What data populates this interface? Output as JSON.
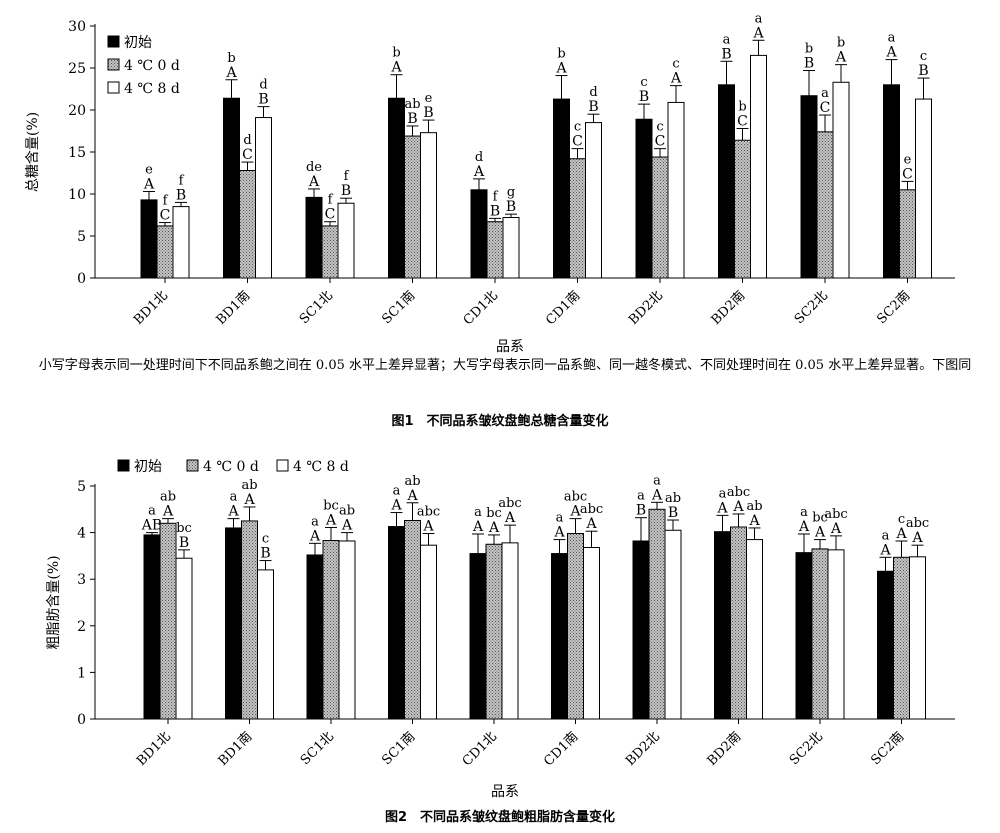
{
  "chart_data": [
    {
      "type": "bar",
      "ylabel": "总糖含量(%)",
      "xlabel": "品系",
      "ylim": [
        0,
        30
      ],
      "yticks": [
        0,
        5,
        10,
        15,
        20,
        25,
        30
      ],
      "legend_position": "top-left",
      "categories": [
        "BD1北",
        "BD1南",
        "SC1北",
        "SC1南",
        "CD1北",
        "CD1南",
        "BD2北",
        "BD2南",
        "SC2北",
        "SC2南"
      ],
      "series": [
        {
          "name": "初始",
          "fill": "black",
          "values": [
            9.3,
            21.4,
            9.6,
            21.4,
            10.5,
            21.3,
            18.9,
            23.0,
            21.7,
            23.0
          ],
          "errors": [
            1.0,
            2.2,
            1.0,
            2.8,
            1.3,
            2.8,
            1.8,
            2.8,
            3.0,
            3.0
          ],
          "lower_letters": [
            "e",
            "b",
            "de",
            "b",
            "d",
            "b",
            "c",
            "a",
            "b",
            "a"
          ],
          "upper_letters": [
            "A",
            "A",
            "A",
            "A",
            "A",
            "A",
            "B",
            "B",
            "B",
            "A"
          ]
        },
        {
          "name": "4 ℃ 0 d",
          "fill": "gray",
          "values": [
            6.2,
            12.8,
            6.2,
            16.9,
            6.7,
            14.2,
            14.4,
            16.4,
            17.4,
            10.5
          ],
          "errors": [
            0.4,
            1.0,
            0.5,
            1.2,
            0.4,
            1.2,
            1.0,
            1.4,
            2.0,
            1.0
          ],
          "lower_letters": [
            "f",
            "d",
            "f",
            "ab",
            "f",
            "c",
            "c",
            "b",
            "a",
            "e"
          ],
          "upper_letters": [
            "C",
            "C",
            "C",
            "B",
            "B",
            "C",
            "C",
            "C",
            "C",
            "C"
          ]
        },
        {
          "name": "4 ℃ 8 d",
          "fill": "white",
          "values": [
            8.5,
            19.1,
            8.9,
            17.3,
            7.2,
            18.5,
            20.9,
            26.5,
            23.3,
            21.3
          ],
          "errors": [
            0.5,
            1.3,
            0.6,
            1.5,
            0.4,
            1.0,
            2.0,
            1.8,
            2.1,
            2.5
          ],
          "lower_letters": [
            "f",
            "d",
            "f",
            "e",
            "g",
            "d",
            "c",
            "a",
            "b",
            "c"
          ],
          "upper_letters": [
            "B",
            "B",
            "B",
            "B",
            "B",
            "B",
            "A",
            "A",
            "A",
            "B"
          ]
        }
      ]
    },
    {
      "type": "bar",
      "ylabel": "粗脂肪含量(%)",
      "xlabel": "品系",
      "ylim": [
        0,
        5
      ],
      "yticks": [
        0,
        1,
        2,
        3,
        4,
        5
      ],
      "legend_position": "top",
      "categories": [
        "BD1北",
        "BD1南",
        "SC1北",
        "SC1南",
        "CD1北",
        "CD1南",
        "BD2北",
        "BD2南",
        "SC2北",
        "SC2南"
      ],
      "series": [
        {
          "name": "初始",
          "fill": "black",
          "values": [
            3.95,
            4.1,
            3.52,
            4.13,
            3.55,
            3.55,
            3.82,
            4.02,
            3.57,
            3.17
          ],
          "errors": [
            0.05,
            0.2,
            0.25,
            0.3,
            0.42,
            0.3,
            0.5,
            0.35,
            0.4,
            0.3
          ],
          "lower_letters": [
            "a",
            "a",
            "a",
            "a",
            "a",
            "a",
            "a",
            "a",
            "a",
            "a"
          ],
          "upper_letters": [
            "AB",
            "A",
            "A",
            "A",
            "A",
            "A",
            "B",
            "A",
            "A",
            "A"
          ]
        },
        {
          "name": "4 ℃ 0 d",
          "fill": "gray",
          "values": [
            4.2,
            4.25,
            3.83,
            4.26,
            3.75,
            3.98,
            4.5,
            4.12,
            3.65,
            3.47
          ],
          "errors": [
            0.1,
            0.3,
            0.28,
            0.38,
            0.2,
            0.32,
            0.15,
            0.28,
            0.2,
            0.35
          ],
          "lower_letters": [
            "ab",
            "ab",
            "bc",
            "ab",
            "bc",
            "abc",
            "a",
            "abc",
            "bc",
            "c"
          ],
          "upper_letters": [
            "A",
            "A",
            "A",
            "A",
            "A",
            "A",
            "A",
            "A",
            "A",
            "A"
          ]
        },
        {
          "name": "4 ℃ 8 d",
          "fill": "white",
          "values": [
            3.45,
            3.2,
            3.82,
            3.73,
            3.78,
            3.68,
            4.05,
            3.85,
            3.63,
            3.48
          ],
          "errors": [
            0.18,
            0.2,
            0.18,
            0.25,
            0.38,
            0.35,
            0.22,
            0.25,
            0.3,
            0.25
          ],
          "lower_letters": [
            "bc",
            "c",
            "ab",
            "abc",
            "abc",
            "abc",
            "ab",
            "ab",
            "abc",
            "abc"
          ],
          "upper_letters": [
            "B",
            "B",
            "A",
            "A",
            "A",
            "A",
            "B",
            "A",
            "A",
            "A"
          ]
        }
      ]
    }
  ],
  "figure1": {
    "note": "小写字母表示同一处理时间下不同品系鲍之间在 0.05 水平上差异显著；大写字母表示同一品系鲍、同一越冬模式、不同处理时间在 0.05 水平上差异显著。下图同",
    "caption": "图1　不同品系皱纹盘鲍总糖含量变化"
  },
  "figure2": {
    "caption": "图2　不同品系皱纹盘鲍粗脂肪含量变化"
  }
}
